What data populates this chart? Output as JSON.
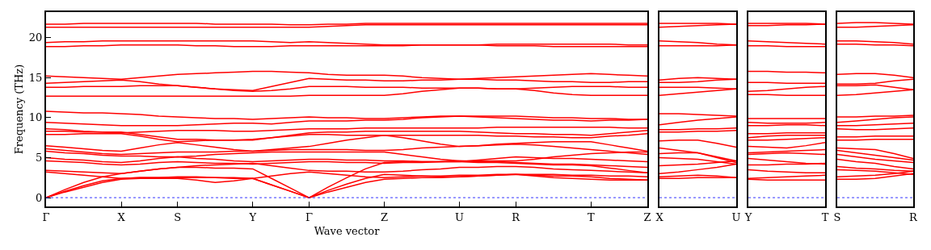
{
  "chart_data": [
    {
      "type": "line",
      "xlabel": "Wave vector",
      "ylabel": "Frequency (THz)",
      "ylim": [
        -1.1,
        23.2
      ],
      "yticks": [
        0,
        5,
        10,
        15,
        20
      ],
      "categories": [
        "Γ",
        null,
        null,
        null,
        "X",
        null,
        null,
        "S",
        null,
        null,
        null,
        "Y",
        null,
        null,
        "Γ",
        null,
        null,
        null,
        "Z",
        null,
        null,
        null,
        "U",
        null,
        null,
        "R",
        null,
        null,
        null,
        "T",
        null,
        null,
        "Z"
      ],
      "ref_lines": [
        {
          "axis": "y",
          "value": 0,
          "color": "#0000ff",
          "line_style": "dotted"
        }
      ],
      "series": [
        {
          "color": "#ff0000",
          "values": [
            0,
            0.7,
            1.3,
            1.9,
            2.3,
            2.4,
            2.4,
            2.4,
            2.2,
            1.9,
            2.1,
            2.4,
            1.6,
            0.8,
            0,
            0.7,
            1.3,
            1.9,
            2.3,
            2.4,
            2.5,
            2.5,
            2.6,
            2.7,
            2.8,
            2.9,
            2.7,
            2.5,
            2.4,
            2.3,
            2.2,
            2.2,
            2.2
          ]
        },
        {
          "color": "#ff0000",
          "values": [
            0,
            0.8,
            1.5,
            2.1,
            2.4,
            2.5,
            2.5,
            2.6,
            2.6,
            2.5,
            2.5,
            2.4,
            1.6,
            0.8,
            0,
            0.9,
            1.7,
            2.4,
            2.9,
            2.8,
            2.7,
            2.6,
            2.6,
            2.7,
            2.8,
            2.9,
            2.9,
            2.9,
            2.8,
            2.8,
            2.7,
            2.7,
            2.6
          ]
        },
        {
          "color": "#ff0000",
          "values": [
            0,
            1.0,
            1.9,
            2.6,
            3.0,
            3.3,
            3.6,
            3.8,
            3.8,
            3.7,
            3.7,
            3.6,
            2.4,
            1.2,
            0,
            1.3,
            2.5,
            3.6,
            4.4,
            4.5,
            4.5,
            4.5,
            4.5,
            4.4,
            4.4,
            4.3,
            4.2,
            4.1,
            4.1,
            4.0,
            3.7,
            3.4,
            3.1
          ]
        },
        {
          "color": "#ff0000",
          "values": [
            3.2,
            3.0,
            2.8,
            2.6,
            2.4,
            2.5,
            2.5,
            2.5,
            2.5,
            2.5,
            2.4,
            2.4,
            2.7,
            3.0,
            3.2,
            3.0,
            2.8,
            2.6,
            2.5,
            2.6,
            2.7,
            2.7,
            2.8,
            2.8,
            2.9,
            2.9,
            2.8,
            2.7,
            2.7,
            2.6,
            2.4,
            2.3,
            2.2
          ]
        },
        {
          "color": "#ff0000",
          "values": [
            3.4,
            3.3,
            3.2,
            3.1,
            3.0,
            3.3,
            3.6,
            3.8,
            4.0,
            4.1,
            4.2,
            4.3,
            4.0,
            3.7,
            3.4,
            3.3,
            3.3,
            3.2,
            3.2,
            3.3,
            3.5,
            3.6,
            3.8,
            3.8,
            3.9,
            3.9,
            3.8,
            3.6,
            3.5,
            3.4,
            3.3,
            3.2,
            3.1
          ]
        },
        {
          "color": "#ff0000",
          "values": [
            4.6,
            4.5,
            4.4,
            4.2,
            4.1,
            4.2,
            4.4,
            4.5,
            4.4,
            4.3,
            4.3,
            4.2,
            4.3,
            4.4,
            4.5,
            4.5,
            4.4,
            4.4,
            4.3,
            4.4,
            4.4,
            4.5,
            4.6,
            4.5,
            4.5,
            4.4,
            4.3,
            4.2,
            4.2,
            4.1,
            4.0,
            3.9,
            3.8
          ]
        },
        {
          "color": "#ff0000",
          "values": [
            5.0,
            4.8,
            4.7,
            4.5,
            4.4,
            4.6,
            4.9,
            5.1,
            4.9,
            4.8,
            4.6,
            4.5,
            4.6,
            4.7,
            4.8,
            4.8,
            4.7,
            4.7,
            4.6,
            4.6,
            4.5,
            4.5,
            4.5,
            4.7,
            4.9,
            5.1,
            5.0,
            4.9,
            4.9,
            4.8,
            4.7,
            4.6,
            4.5
          ]
        },
        {
          "color": "#ff0000",
          "values": [
            5.8,
            5.6,
            5.5,
            5.3,
            5.2,
            5.2,
            5.1,
            5.1,
            5.2,
            5.4,
            5.5,
            5.6,
            5.7,
            5.7,
            5.7,
            5.7,
            5.7,
            5.7,
            5.7,
            5.4,
            5.1,
            4.8,
            4.6,
            4.6,
            4.6,
            4.6,
            4.8,
            5.1,
            5.3,
            5.5,
            5.6,
            5.7,
            5.7
          ]
        },
        {
          "color": "#ff0000",
          "values": [
            6.1,
            5.9,
            5.7,
            5.5,
            5.4,
            5.5,
            5.6,
            5.7,
            5.7,
            5.7,
            5.8,
            5.8,
            5.9,
            6.0,
            6.0,
            6.0,
            6.0,
            5.9,
            5.9,
            6.0,
            6.2,
            6.3,
            6.4,
            6.5,
            6.6,
            6.7,
            6.6,
            6.4,
            6.2,
            6.0,
            5.8,
            5.6,
            5.4
          ]
        },
        {
          "color": "#ff0000",
          "values": [
            6.5,
            6.3,
            6.1,
            5.9,
            5.8,
            6.2,
            6.6,
            6.9,
            6.6,
            6.3,
            6.0,
            5.8,
            6.0,
            6.2,
            6.4,
            6.8,
            7.2,
            7.5,
            7.8,
            7.5,
            7.1,
            6.7,
            6.4,
            6.5,
            6.7,
            6.8,
            6.9,
            7.0,
            7.0,
            7.0,
            6.6,
            6.2,
            5.8
          ]
        },
        {
          "color": "#ff0000",
          "values": [
            7.9,
            7.9,
            8.0,
            8.0,
            8.0,
            7.7,
            7.3,
            7.0,
            7.1,
            7.2,
            7.2,
            7.3,
            7.5,
            7.7,
            7.9,
            7.9,
            7.8,
            7.8,
            7.8,
            7.8,
            7.8,
            7.8,
            7.8,
            7.8,
            7.7,
            7.7,
            7.6,
            7.6,
            7.5,
            7.5,
            7.7,
            7.8,
            8.0
          ]
        },
        {
          "color": "#ff0000",
          "values": [
            8.3,
            8.3,
            8.2,
            8.2,
            8.2,
            7.9,
            7.6,
            7.3,
            7.3,
            7.2,
            7.2,
            7.2,
            7.5,
            7.8,
            8.1,
            8.2,
            8.2,
            8.3,
            8.3,
            8.3,
            8.3,
            8.3,
            8.3,
            8.2,
            8.1,
            8.0,
            8.0,
            7.9,
            7.9,
            7.8,
            8.0,
            8.2,
            8.4
          ]
        },
        {
          "color": "#ff0000",
          "values": [
            8.6,
            8.5,
            8.3,
            8.2,
            8.1,
            8.2,
            8.3,
            8.4,
            8.4,
            8.4,
            8.3,
            8.3,
            8.4,
            8.5,
            8.6,
            8.6,
            8.6,
            8.7,
            8.7,
            8.7,
            8.7,
            8.7,
            8.7,
            8.7,
            8.8,
            8.8,
            8.8,
            8.8,
            8.8,
            8.8,
            8.8,
            8.7,
            8.7
          ]
        },
        {
          "color": "#ff0000",
          "values": [
            9.4,
            9.3,
            9.2,
            9.1,
            9.0,
            9.0,
            9.0,
            9.0,
            9.1,
            9.2,
            9.3,
            9.3,
            9.2,
            9.4,
            9.6,
            9.6,
            9.6,
            9.7,
            9.7,
            9.8,
            10.0,
            10.1,
            10.2,
            10.1,
            10.0,
            9.9,
            9.8,
            9.7,
            9.7,
            9.6,
            9.7,
            9.7,
            9.8
          ]
        },
        {
          "color": "#ff0000",
          "values": [
            10.8,
            10.7,
            10.6,
            10.6,
            10.5,
            10.4,
            10.2,
            10.1,
            10.0,
            9.9,
            9.9,
            9.8,
            9.9,
            10.0,
            10.1,
            10.0,
            10.0,
            9.9,
            9.9,
            10.0,
            10.1,
            10.2,
            10.2,
            10.2,
            10.2,
            10.2,
            10.1,
            10.0,
            10.0,
            9.9,
            9.9,
            9.8,
            9.8
          ]
        },
        {
          "color": "#ff0000",
          "values": [
            12.7,
            12.7,
            12.7,
            12.7,
            12.7,
            12.7,
            12.7,
            12.7,
            12.7,
            12.7,
            12.7,
            12.7,
            12.7,
            12.7,
            12.8,
            12.8,
            12.8,
            12.8,
            12.8,
            13.0,
            13.3,
            13.5,
            13.7,
            13.7,
            13.6,
            13.6,
            13.4,
            13.1,
            12.9,
            12.8,
            12.8,
            12.8,
            12.8
          ]
        },
        {
          "color": "#ff0000",
          "values": [
            13.8,
            13.8,
            13.9,
            13.9,
            13.9,
            14.0,
            14.0,
            14.0,
            13.8,
            13.6,
            13.4,
            13.3,
            13.4,
            13.6,
            13.9,
            13.9,
            13.9,
            13.8,
            13.8,
            13.8,
            13.7,
            13.7,
            13.7,
            13.7,
            13.6,
            13.6,
            13.7,
            13.8,
            13.9,
            13.9,
            13.9,
            13.8,
            13.8
          ]
        },
        {
          "color": "#ff0000",
          "values": [
            14.3,
            14.4,
            14.5,
            14.6,
            14.7,
            14.5,
            14.2,
            14.0,
            13.8,
            13.6,
            13.5,
            13.4,
            13.9,
            14.4,
            14.9,
            14.8,
            14.7,
            14.7,
            14.6,
            14.6,
            14.7,
            14.7,
            14.8,
            14.8,
            14.7,
            14.7,
            14.6,
            14.5,
            14.5,
            14.4,
            14.4,
            14.5,
            14.5
          ]
        },
        {
          "color": "#ff0000",
          "values": [
            15.2,
            15.1,
            15.0,
            14.9,
            14.8,
            15.0,
            15.2,
            15.4,
            15.5,
            15.6,
            15.7,
            15.8,
            15.8,
            15.7,
            15.6,
            15.4,
            15.3,
            15.3,
            15.3,
            15.2,
            15.0,
            14.9,
            14.8,
            14.9,
            15.0,
            15.1,
            15.2,
            15.3,
            15.4,
            15.5,
            15.4,
            15.3,
            15.2
          ]
        },
        {
          "color": "#ff0000",
          "values": [
            18.9,
            18.9,
            19.0,
            19.0,
            19.1,
            19.1,
            19.1,
            19.1,
            19.0,
            19.0,
            18.9,
            18.9,
            18.9,
            19.0,
            19.0,
            19.0,
            19.0,
            19.0,
            19.0,
            19.0,
            19.1,
            19.1,
            19.1,
            19.1,
            19.0,
            19.0,
            19.0,
            18.9,
            18.9,
            18.9,
            18.9,
            18.9,
            18.9
          ]
        },
        {
          "color": "#ff0000",
          "values": [
            19.4,
            19.5,
            19.5,
            19.6,
            19.6,
            19.6,
            19.6,
            19.6,
            19.6,
            19.6,
            19.6,
            19.6,
            19.5,
            19.4,
            19.5,
            19.4,
            19.3,
            19.2,
            19.1,
            19.1,
            19.1,
            19.1,
            19.1,
            19.1,
            19.2,
            19.2,
            19.2,
            19.2,
            19.2,
            19.2,
            19.2,
            19.1,
            19.1
          ]
        },
        {
          "color": "#ff0000",
          "values": [
            21.3,
            21.3,
            21.3,
            21.3,
            21.3,
            21.3,
            21.3,
            21.3,
            21.3,
            21.3,
            21.3,
            21.3,
            21.3,
            21.3,
            21.3,
            21.4,
            21.5,
            21.6,
            21.6,
            21.6,
            21.6,
            21.6,
            21.6,
            21.6,
            21.6,
            21.6,
            21.6,
            21.6,
            21.6,
            21.6,
            21.6,
            21.6,
            21.6
          ]
        },
        {
          "color": "#ff0000",
          "values": [
            21.7,
            21.7,
            21.8,
            21.8,
            21.8,
            21.8,
            21.8,
            21.8,
            21.8,
            21.7,
            21.7,
            21.7,
            21.7,
            21.6,
            21.6,
            21.7,
            21.7,
            21.8,
            21.8,
            21.8,
            21.8,
            21.8,
            21.8,
            21.8,
            21.8,
            21.8,
            21.8,
            21.8,
            21.8,
            21.8,
            21.8,
            21.8,
            21.8
          ]
        }
      ]
    },
    {
      "type": "line",
      "ylim": [
        -1.1,
        23.2
      ],
      "yticks": [
        0,
        5,
        10,
        15,
        20
      ],
      "tick_labels": "x",
      "categories": [
        "X",
        null,
        null,
        null,
        "U"
      ],
      "ref_lines": [
        {
          "axis": "y",
          "value": 0,
          "color": "#0000ff",
          "line_style": "dotted"
        }
      ],
      "series": [
        {
          "color": "#ff0000",
          "values": [
            21.8,
            21.8,
            21.8,
            21.8,
            21.7
          ]
        },
        {
          "color": "#ff0000",
          "values": [
            21.3,
            21.4,
            21.5,
            21.6,
            21.7
          ]
        },
        {
          "color": "#ff0000",
          "values": [
            19.6,
            19.5,
            19.4,
            19.2,
            19.1
          ]
        },
        {
          "color": "#ff0000",
          "values": [
            19.0,
            19.0,
            19.0,
            19.0,
            19.1
          ]
        },
        {
          "color": "#ff0000",
          "values": [
            14.7,
            14.9,
            15.0,
            14.9,
            14.8
          ]
        },
        {
          "color": "#ff0000",
          "values": [
            14.4,
            14.4,
            14.5,
            14.7,
            14.8
          ]
        },
        {
          "color": "#ff0000",
          "values": [
            13.8,
            13.8,
            13.8,
            13.7,
            13.6
          ]
        },
        {
          "color": "#ff0000",
          "values": [
            12.8,
            13.0,
            13.2,
            13.4,
            13.6
          ]
        },
        {
          "color": "#ff0000",
          "values": [
            10.5,
            10.5,
            10.4,
            10.3,
            10.2
          ]
        },
        {
          "color": "#ff0000",
          "values": [
            9.1,
            9.4,
            9.7,
            9.9,
            10.1
          ]
        },
        {
          "color": "#ff0000",
          "values": [
            8.5,
            8.5,
            8.6,
            8.6,
            8.7
          ]
        },
        {
          "color": "#ff0000",
          "values": [
            8.2,
            8.2,
            8.3,
            8.3,
            8.4
          ]
        },
        {
          "color": "#ff0000",
          "values": [
            7.1,
            7.2,
            7.2,
            6.8,
            6.3
          ]
        },
        {
          "color": "#ff0000",
          "values": [
            6.2,
            5.9,
            5.6,
            5.1,
            4.6
          ]
        },
        {
          "color": "#ff0000",
          "values": [
            5.5,
            5.6,
            5.6,
            5.0,
            4.4
          ]
        },
        {
          "color": "#ff0000",
          "values": [
            5.0,
            4.9,
            4.8,
            4.5,
            4.2
          ]
        },
        {
          "color": "#ff0000",
          "values": [
            4.0,
            4.1,
            4.2,
            4.4,
            4.6
          ]
        },
        {
          "color": "#ff0000",
          "values": [
            3.0,
            3.2,
            3.5,
            3.8,
            4.2
          ]
        },
        {
          "color": "#ff0000",
          "values": [
            2.4,
            2.4,
            2.5,
            2.5,
            2.5
          ]
        },
        {
          "color": "#ff0000",
          "values": [
            2.6,
            2.7,
            2.8,
            2.7,
            2.5
          ]
        }
      ]
    },
    {
      "type": "line",
      "ylim": [
        -1.1,
        23.2
      ],
      "yticks": [
        0,
        5,
        10,
        15,
        20
      ],
      "tick_labels": "x",
      "categories": [
        "Y",
        null,
        null,
        null,
        "T"
      ],
      "ref_lines": [
        {
          "axis": "y",
          "value": 0,
          "color": "#0000ff",
          "line_style": "dotted"
        }
      ],
      "series": [
        {
          "color": "#ff0000",
          "values": [
            21.8,
            21.8,
            21.8,
            21.8,
            21.7
          ]
        },
        {
          "color": "#ff0000",
          "values": [
            21.5,
            21.5,
            21.6,
            21.6,
            21.7
          ]
        },
        {
          "color": "#ff0000",
          "values": [
            19.6,
            19.5,
            19.4,
            19.3,
            19.2
          ]
        },
        {
          "color": "#ff0000",
          "values": [
            19.0,
            19.0,
            18.9,
            18.9,
            18.9
          ]
        },
        {
          "color": "#ff0000",
          "values": [
            15.8,
            15.8,
            15.7,
            15.7,
            15.6
          ]
        },
        {
          "color": "#ff0000",
          "values": [
            14.4,
            14.4,
            14.3,
            14.3,
            14.3
          ]
        },
        {
          "color": "#ff0000",
          "values": [
            13.3,
            13.4,
            13.6,
            13.8,
            13.9
          ]
        },
        {
          "color": "#ff0000",
          "values": [
            12.9,
            12.9,
            12.8,
            12.8,
            12.8
          ]
        },
        {
          "color": "#ff0000",
          "values": [
            9.9,
            9.9,
            9.9,
            9.9,
            9.9
          ]
        },
        {
          "color": "#ff0000",
          "values": [
            9.4,
            9.3,
            9.3,
            9.3,
            9.4
          ]
        },
        {
          "color": "#ff0000",
          "values": [
            9.0,
            9.0,
            9.1,
            9.1,
            9.0
          ]
        },
        {
          "color": "#ff0000",
          "values": [
            8.0,
            8.0,
            8.1,
            8.1,
            8.1
          ]
        },
        {
          "color": "#ff0000",
          "values": [
            7.5,
            7.7,
            7.8,
            7.8,
            7.8
          ]
        },
        {
          "color": "#ff0000",
          "values": [
            7.2,
            7.2,
            7.3,
            7.4,
            7.5
          ]
        },
        {
          "color": "#ff0000",
          "values": [
            6.4,
            6.3,
            6.2,
            6.5,
            6.9
          ]
        },
        {
          "color": "#ff0000",
          "values": [
            5.6,
            5.7,
            5.8,
            5.9,
            6.0
          ]
        },
        {
          "color": "#ff0000",
          "values": [
            5.4,
            5.5,
            5.6,
            5.5,
            5.4
          ]
        },
        {
          "color": "#ff0000",
          "values": [
            4.9,
            4.7,
            4.5,
            4.3,
            4.2
          ]
        },
        {
          "color": "#ff0000",
          "values": [
            4.1,
            4.1,
            4.2,
            4.2,
            4.3
          ]
        },
        {
          "color": "#ff0000",
          "values": [
            3.5,
            3.3,
            3.2,
            3.1,
            3.1
          ]
        },
        {
          "color": "#ff0000",
          "values": [
            2.4,
            2.5,
            2.6,
            2.7,
            2.8
          ]
        },
        {
          "color": "#ff0000",
          "values": [
            2.3,
            2.2,
            2.2,
            2.2,
            2.2
          ]
        }
      ]
    },
    {
      "type": "line",
      "ylim": [
        -1.1,
        23.2
      ],
      "yticks": [
        0,
        5,
        10,
        15,
        20
      ],
      "tick_labels": "x",
      "categories": [
        "S",
        null,
        null,
        null,
        "R"
      ],
      "ref_lines": [
        {
          "axis": "y",
          "value": 0,
          "color": "#0000ff",
          "line_style": "dotted"
        }
      ],
      "series": [
        {
          "color": "#ff0000",
          "values": [
            21.8,
            21.9,
            21.9,
            21.8,
            21.7
          ]
        },
        {
          "color": "#ff0000",
          "values": [
            21.3,
            21.3,
            21.4,
            21.5,
            21.6
          ]
        },
        {
          "color": "#ff0000",
          "values": [
            19.6,
            19.6,
            19.5,
            19.4,
            19.2
          ]
        },
        {
          "color": "#ff0000",
          "values": [
            19.2,
            19.2,
            19.1,
            19.1,
            19.0
          ]
        },
        {
          "color": "#ff0000",
          "values": [
            15.4,
            15.5,
            15.5,
            15.3,
            15.0
          ]
        },
        {
          "color": "#ff0000",
          "values": [
            14.2,
            14.2,
            14.3,
            14.6,
            14.8
          ]
        },
        {
          "color": "#ff0000",
          "values": [
            14.0,
            14.0,
            14.1,
            13.8,
            13.5
          ]
        },
        {
          "color": "#ff0000",
          "values": [
            12.8,
            12.9,
            13.1,
            13.3,
            13.5
          ]
        },
        {
          "color": "#ff0000",
          "values": [
            10.1,
            10.1,
            10.2,
            10.2,
            10.3
          ]
        },
        {
          "color": "#ff0000",
          "values": [
            9.4,
            9.6,
            9.8,
            10.0,
            10.1
          ]
        },
        {
          "color": "#ff0000",
          "values": [
            9.0,
            9.0,
            9.1,
            9.2,
            9.3
          ]
        },
        {
          "color": "#ff0000",
          "values": [
            8.6,
            8.5,
            8.5,
            8.6,
            8.7
          ]
        },
        {
          "color": "#ff0000",
          "values": [
            7.6,
            7.6,
            7.7,
            7.7,
            7.7
          ]
        },
        {
          "color": "#ff0000",
          "values": [
            7.2,
            7.2,
            7.3,
            7.3,
            7.3
          ]
        },
        {
          "color": "#ff0000",
          "values": [
            6.2,
            6.1,
            6.0,
            5.5,
            4.9
          ]
        },
        {
          "color": "#ff0000",
          "values": [
            5.9,
            5.6,
            5.3,
            5.0,
            4.7
          ]
        },
        {
          "color": "#ff0000",
          "values": [
            5.4,
            5.1,
            4.8,
            4.6,
            4.4
          ]
        },
        {
          "color": "#ff0000",
          "values": [
            4.8,
            4.5,
            4.3,
            3.9,
            3.6
          ]
        },
        {
          "color": "#ff0000",
          "values": [
            3.9,
            3.7,
            3.6,
            3.4,
            3.3
          ]
        },
        {
          "color": "#ff0000",
          "values": [
            3.5,
            3.4,
            3.3,
            3.1,
            2.9
          ]
        },
        {
          "color": "#ff0000",
          "values": [
            2.6,
            2.7,
            2.8,
            3.0,
            3.3
          ]
        },
        {
          "color": "#ff0000",
          "values": [
            2.3,
            2.3,
            2.4,
            2.7,
            3.0
          ]
        }
      ]
    }
  ]
}
